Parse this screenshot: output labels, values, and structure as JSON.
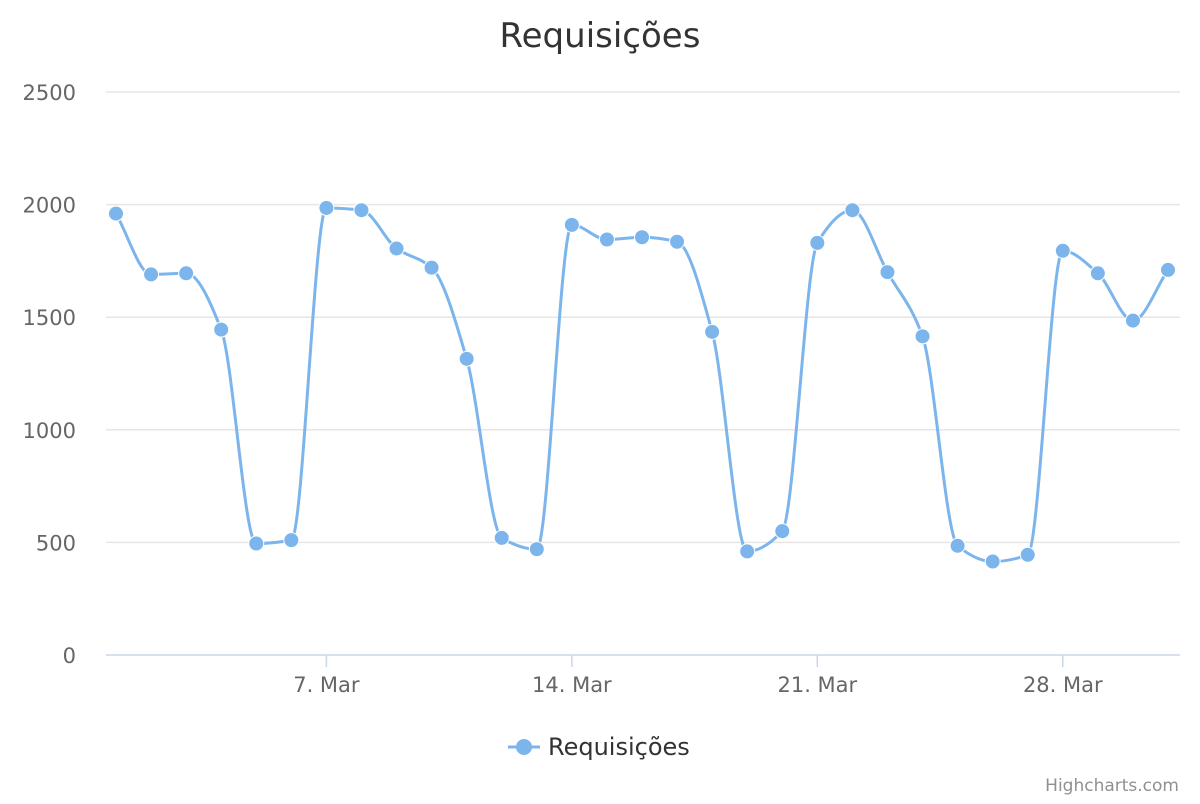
{
  "chart_data": {
    "type": "line",
    "title": "Requisições",
    "series": [
      {
        "name": "Requisições",
        "color": "#7cb5ec",
        "x": [
          "2016-03-01",
          "2016-03-02",
          "2016-03-03",
          "2016-03-04",
          "2016-03-05",
          "2016-03-06",
          "2016-03-07",
          "2016-03-08",
          "2016-03-09",
          "2016-03-10",
          "2016-03-11",
          "2016-03-12",
          "2016-03-13",
          "2016-03-14",
          "2016-03-15",
          "2016-03-16",
          "2016-03-17",
          "2016-03-18",
          "2016-03-19",
          "2016-03-20",
          "2016-03-21",
          "2016-03-22",
          "2016-03-23",
          "2016-03-24",
          "2016-03-25",
          "2016-03-26",
          "2016-03-27",
          "2016-03-28",
          "2016-03-29",
          "2016-03-30",
          "2016-03-31"
        ],
        "values": [
          1960,
          1690,
          1695,
          1445,
          495,
          510,
          1985,
          1975,
          1805,
          1720,
          1315,
          520,
          470,
          1910,
          1845,
          1855,
          1835,
          1435,
          460,
          550,
          1830,
          1975,
          1700,
          1415,
          485,
          415,
          445,
          1795,
          1695,
          1485,
          1710
        ]
      }
    ],
    "yticks": [
      0,
      500,
      1000,
      1500,
      2000,
      2500
    ],
    "ylim": [
      0,
      2500
    ],
    "xticks": [
      {
        "label": "7. Mar",
        "date": "2016-03-07"
      },
      {
        "label": "14. Mar",
        "date": "2016-03-14"
      },
      {
        "label": "21. Mar",
        "date": "2016-03-21"
      },
      {
        "label": "28. Mar",
        "date": "2016-03-28"
      }
    ],
    "grid": true,
    "legend_position": "bottom-center",
    "credits": "Highcharts.com"
  }
}
